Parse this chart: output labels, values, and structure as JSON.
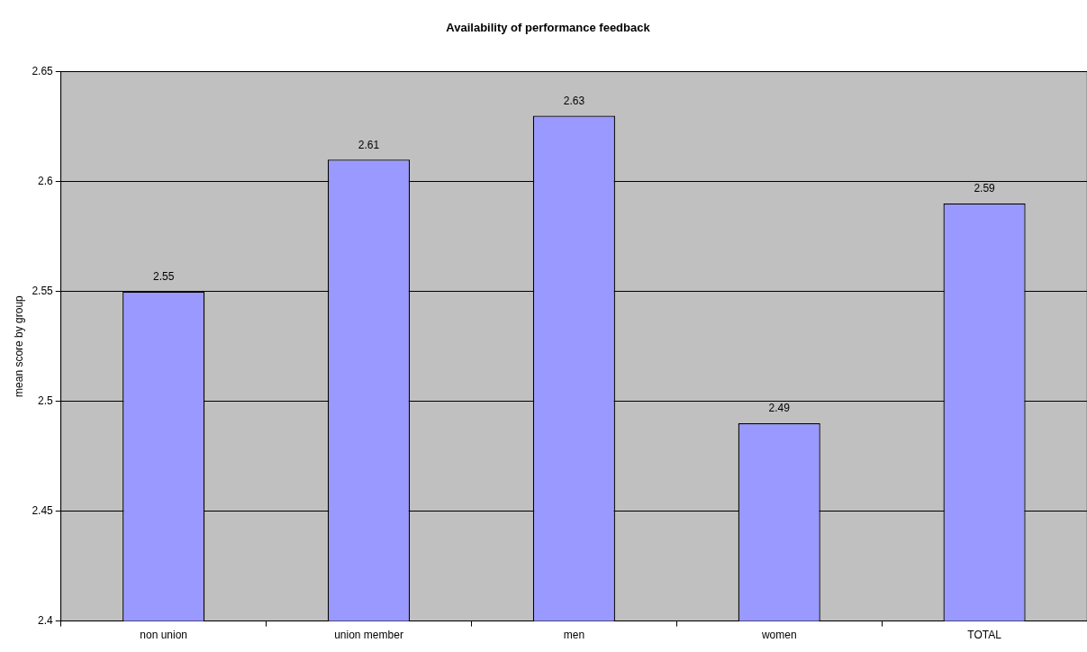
{
  "chart_data": {
    "type": "bar",
    "title": "Availability of performance feedback",
    "ylabel": "mean score by group",
    "categories": [
      "non union",
      "union member",
      "men",
      "women",
      "TOTAL"
    ],
    "values": [
      2.55,
      2.61,
      2.63,
      2.49,
      2.59
    ],
    "color": "#9999ff",
    "ylim": [
      2.4,
      2.65
    ],
    "yticks": [
      2.4,
      2.45,
      2.5,
      2.55,
      2.6,
      2.65
    ],
    "grid": "y",
    "legend": false,
    "data_labels": true
  }
}
